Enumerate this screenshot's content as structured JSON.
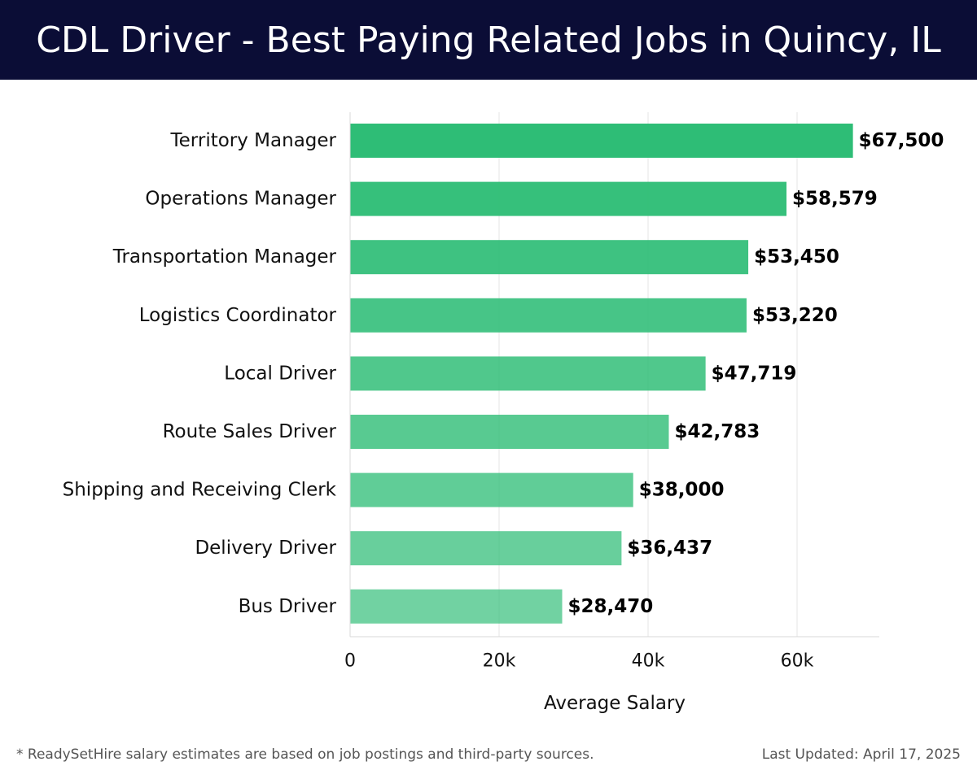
{
  "header": {
    "title": "CDL Driver - Best Paying Related Jobs in Quincy, IL"
  },
  "footer": {
    "note": "* ReadySetHire salary estimates are based on job postings and third-party sources.",
    "updated": "Last Updated: April 17, 2025"
  },
  "colors": {
    "header_bg": "#0b0d36",
    "bar": "#2ebd76"
  },
  "chart_data": {
    "type": "bar",
    "orientation": "horizontal",
    "title": "CDL Driver - Best Paying Related Jobs in Quincy, IL",
    "xlabel": "Average Salary",
    "ylabel": "",
    "xlim": [
      0,
      71000
    ],
    "xticks": [
      0,
      20000,
      40000,
      60000
    ],
    "xtick_labels": [
      "0",
      "20k",
      "40k",
      "60k"
    ],
    "grid": true,
    "categories": [
      "Territory Manager",
      "Operations Manager",
      "Transportation Manager",
      "Logistics Coordinator",
      "Local Driver",
      "Route Sales Driver",
      "Shipping and Receiving Clerk",
      "Delivery Driver",
      "Bus Driver"
    ],
    "values": [
      67500,
      58579,
      53450,
      53220,
      47719,
      42783,
      38000,
      36437,
      28470
    ],
    "value_labels": [
      "$67,500",
      "$58,579",
      "$53,450",
      "$53,220",
      "$47,719",
      "$42,783",
      "$38,000",
      "$36,437",
      "$28,470"
    ]
  }
}
